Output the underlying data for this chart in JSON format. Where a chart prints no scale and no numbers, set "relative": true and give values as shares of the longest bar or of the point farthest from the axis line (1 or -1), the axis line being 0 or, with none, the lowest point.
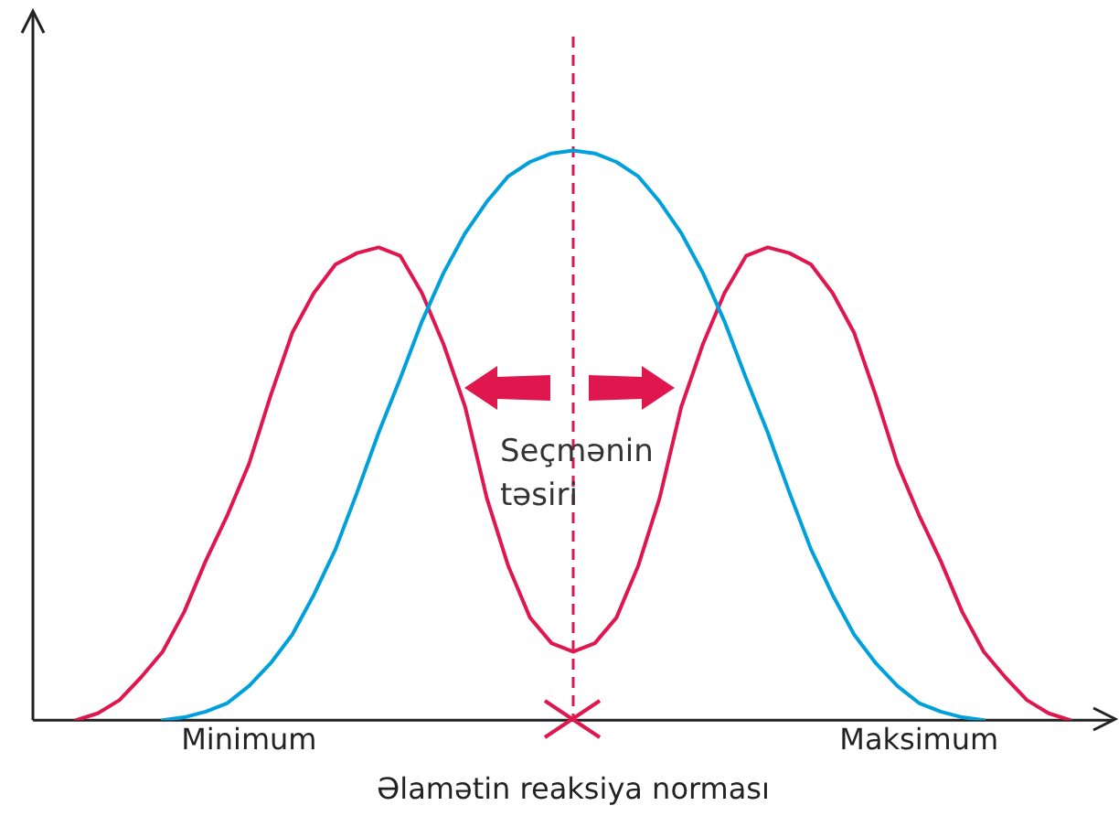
{
  "chart_data": {
    "type": "line",
    "relative": true,
    "xlabel": "Əlamətin reaksiya norması",
    "categories": [
      null,
      null,
      null,
      null,
      null,
      null,
      null,
      null,
      null,
      null,
      "Minimum",
      null,
      null,
      null,
      null,
      null,
      null,
      null,
      null,
      null,
      null,
      null,
      null,
      null,
      null,
      null,
      null,
      null,
      null,
      null,
      null,
      null,
      null,
      null,
      null,
      null,
      null,
      null,
      null,
      null,
      null,
      "Maksimum",
      null,
      null,
      null,
      null,
      null,
      null,
      null,
      null,
      null
    ],
    "grid": false,
    "legend": false,
    "marker": "none",
    "line_style": "solid",
    "series": [
      {
        "color": "#00a0dc",
        "values": [
          null,
          null,
          null,
          null,
          null,
          null,
          0,
          0.005,
          0.015,
          0.03,
          0.06,
          0.1,
          0.15,
          0.22,
          0.3,
          0.4,
          0.505,
          0.6,
          0.7,
          0.785,
          0.855,
          0.91,
          0.955,
          0.98,
          0.995,
          1,
          0.995,
          0.98,
          0.955,
          0.91,
          0.855,
          0.785,
          0.7,
          0.6,
          0.505,
          0.4,
          0.3,
          0.22,
          0.15,
          0.1,
          0.06,
          0.03,
          0.015,
          0.005,
          0,
          null,
          null,
          null,
          null,
          null,
          null
        ]
      },
      {
        "color": "#e0174f",
        "values": [
          null,
          null,
          0,
          0.012,
          0.035,
          0.075,
          0.12,
          0.19,
          0.28,
          0.36,
          0.45,
          0.57,
          0.68,
          0.75,
          0.8,
          0.82,
          0.83,
          0.815,
          0.75,
          0.66,
          0.55,
          0.39,
          0.27,
          0.18,
          0.135,
          0.12,
          0.135,
          0.18,
          0.27,
          0.39,
          0.55,
          0.66,
          0.75,
          0.815,
          0.83,
          0.82,
          0.8,
          0.75,
          0.68,
          0.57,
          0.45,
          0.36,
          0.28,
          0.19,
          0.12,
          0.075,
          0.035,
          0.012,
          0,
          null,
          null
        ]
      }
    ],
    "annotations": [
      "Seçmənin təsiri"
    ]
  }
}
